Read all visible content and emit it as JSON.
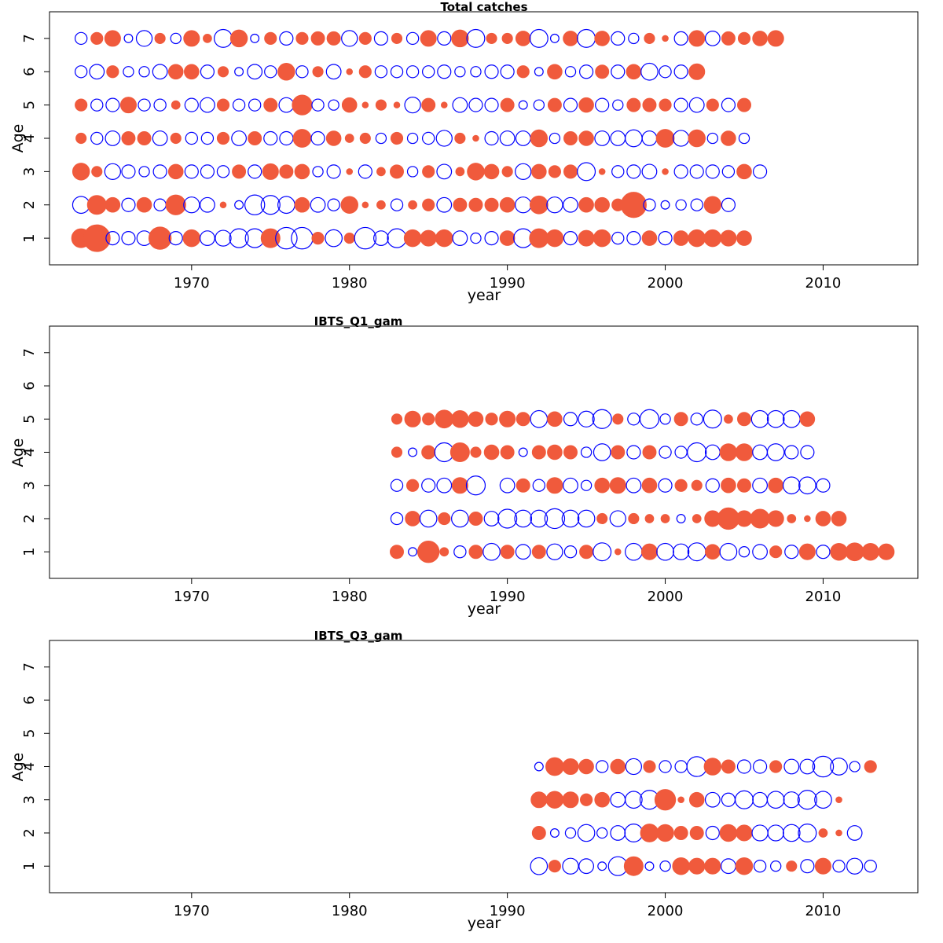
{
  "figure": {
    "colors": {
      "positive": "#f05a3c",
      "negative": "#0000ff",
      "axis": "#000000"
    }
  },
  "chart_data": [
    {
      "type": "scatter",
      "subtype": "bubble",
      "title": "Total catches",
      "xlabel": "year",
      "ylabel": "Age",
      "xlim": [
        1961,
        2016
      ],
      "ylim": [
        0.2,
        7.8
      ],
      "xticks": [
        1970,
        1980,
        1990,
        2000,
        2010
      ],
      "yticks": [
        1,
        2,
        3,
        4,
        5,
        6,
        7
      ],
      "x_start": 1963,
      "ages": [
        1,
        2,
        3,
        4,
        5,
        6,
        7
      ],
      "residuals": {
        "1": [
          1,
          2,
          -0.5,
          -0.5,
          -0.6,
          1.4,
          -0.5,
          0.8,
          -0.6,
          -0.7,
          -1,
          -1,
          1,
          -1.3,
          -1.3,
          0.4,
          -0.8,
          0.3,
          -1.3,
          -0.6,
          -1,
          0.8,
          0.7,
          0.8,
          -0.6,
          -0.3,
          -0.5,
          0.6,
          -1,
          1,
          0.8,
          -0.5,
          0.7,
          0.8,
          -0.4,
          -0.5,
          0.6,
          -0.5,
          0.6,
          0.8,
          0.8,
          0.7,
          0.6
        ],
        "2": [
          -0.8,
          1,
          0.6,
          -0.5,
          0.6,
          -0.4,
          1.1,
          -0.7,
          -0.6,
          0.1,
          -0.2,
          -1.1,
          -1,
          -0.8,
          0.6,
          -0.6,
          -0.4,
          0.8,
          0.1,
          0.2,
          -0.4,
          0.2,
          0.4,
          -0.6,
          0.5,
          0.5,
          0.5,
          0.6,
          -0.7,
          0.9,
          -0.7,
          -0.6,
          0.6,
          0.6,
          0.4,
          1.8,
          -0.4,
          -0.2,
          -0.3,
          -0.4,
          0.8,
          -0.5
        ],
        "3": [
          0.8,
          0.3,
          -0.7,
          -0.5,
          -0.3,
          -0.5,
          0.6,
          -0.5,
          -0.5,
          -0.4,
          0.5,
          -0.5,
          0.7,
          0.5,
          0.6,
          -0.3,
          -0.5,
          0.1,
          -0.5,
          0.2,
          0.5,
          -0.3,
          0.4,
          -0.6,
          0.2,
          0.8,
          0.6,
          0.3,
          -0.7,
          0.6,
          0.4,
          0.5,
          -0.9,
          0.1,
          -0.4,
          -0.5,
          -0.6,
          0.1,
          -0.5,
          -0.5,
          -0.5,
          -0.4,
          0.6,
          -0.5
        ],
        "4": [
          0.3,
          -0.4,
          -0.6,
          0.5,
          0.5,
          -0.6,
          0.3,
          -0.4,
          -0.4,
          0.4,
          -0.6,
          0.5,
          -0.5,
          -0.5,
          0.9,
          -0.5,
          0.6,
          0.2,
          0.3,
          -0.3,
          0.4,
          -0.3,
          -0.4,
          -0.7,
          0.3,
          0.1,
          -0.5,
          -0.6,
          -0.6,
          0.8,
          -0.3,
          0.5,
          0.6,
          -0.6,
          -0.6,
          -0.8,
          -0.6,
          0.9,
          -0.7,
          0.8,
          -0.3,
          0.6,
          -0.3
        ],
        "5": [
          0.4,
          -0.4,
          -0.5,
          0.7,
          -0.4,
          -0.4,
          0.2,
          -0.5,
          -0.6,
          0.4,
          -0.4,
          -0.4,
          0.5,
          -0.6,
          1.1,
          -0.4,
          -0.3,
          0.6,
          0.1,
          0.3,
          0.1,
          -0.7,
          0.5,
          0.1,
          -0.6,
          -0.5,
          -0.5,
          0.5,
          -0.2,
          -0.3,
          0.5,
          -0.5,
          0.6,
          -0.5,
          -0.3,
          0.5,
          0.5,
          0.4,
          -0.5,
          -0.6,
          0.4,
          -0.5,
          0.5
        ],
        "6": [
          -0.4,
          -0.6,
          0.4,
          -0.3,
          -0.3,
          -0.6,
          0.6,
          0.6,
          -0.5,
          0.3,
          -0.2,
          -0.6,
          -0.4,
          0.8,
          -0.4,
          0.3,
          -0.6,
          0.1,
          0.4,
          -0.4,
          -0.4,
          -0.4,
          -0.4,
          -0.5,
          -0.3,
          -0.3,
          -0.5,
          -0.5,
          0.4,
          -0.2,
          0.6,
          -0.3,
          -0.5,
          0.5,
          -0.5,
          0.6,
          -0.8,
          -0.4,
          -0.5,
          0.7
        ],
        "7": [
          -0.4,
          0.4,
          0.7,
          -0.2,
          -0.7,
          0.3,
          -0.3,
          0.7,
          0.2,
          -0.9,
          0.8,
          -0.2,
          0.4,
          -0.5,
          0.4,
          0.5,
          0.5,
          -0.7,
          0.4,
          -0.5,
          0.3,
          -0.4,
          0.7,
          -0.5,
          0.8,
          -0.9,
          0.3,
          0.3,
          0.6,
          -0.9,
          -0.2,
          0.6,
          -0.9,
          0.6,
          -0.5,
          -0.3,
          0.3,
          0.1,
          -0.5,
          0.7,
          -0.6,
          0.5,
          0.4,
          0.6,
          0.7
        ]
      }
    },
    {
      "type": "scatter",
      "subtype": "bubble",
      "title": "IBTS_Q1_gam",
      "xlabel": "year",
      "ylabel": "Age",
      "xlim": [
        1961,
        2016
      ],
      "ylim": [
        0.2,
        7.8
      ],
      "xticks": [
        1970,
        1980,
        1990,
        2000,
        2010
      ],
      "yticks": [
        1,
        2,
        3,
        4,
        5,
        6,
        7
      ],
      "x_start": 1983,
      "ages": [
        1,
        2,
        3,
        4,
        5,
        6,
        7
      ],
      "residuals": {
        "1": [
          0.5,
          -0.2,
          1.3,
          0.2,
          -0.4,
          0.5,
          -0.8,
          0.5,
          -0.6,
          0.5,
          -0.7,
          -0.4,
          0.5,
          -0.9,
          0.1,
          -0.8,
          0.7,
          -0.8,
          -0.7,
          -0.9,
          0.6,
          -0.8,
          -0.3,
          -0.6,
          0.4,
          -0.5,
          0.7,
          -0.5,
          0.8,
          0.9,
          0.8,
          0.7
        ],
        "2": [
          -0.4,
          0.6,
          -0.8,
          0.4,
          -0.8,
          0.5,
          -0.6,
          -1,
          -0.8,
          -0.8,
          -1.1,
          -0.8,
          -0.8,
          0.3,
          -0.7,
          0.3,
          0.2,
          0.2,
          -0.2,
          0.2,
          0.7,
          1.3,
          0.7,
          1,
          0.7,
          0.2,
          0.1,
          0.6,
          0.6
        ],
        "3": [
          -0.4,
          0.4,
          -0.5,
          -0.6,
          0.7,
          -1,
          0,
          -0.6,
          0.5,
          -0.4,
          0.7,
          -0.6,
          -0.3,
          0.6,
          0.7,
          -0.6,
          0.6,
          -0.5,
          0.4,
          0.3,
          -0.5,
          0.6,
          0.5,
          -0.6,
          0.6,
          -0.8,
          -0.8,
          -0.5
        ],
        "4": [
          0.3,
          -0.2,
          0.5,
          -1,
          1,
          0.3,
          0.6,
          0.5,
          -0.2,
          0.5,
          0.6,
          0.5,
          -0.3,
          -0.8,
          0.5,
          -0.5,
          0.5,
          -0.4,
          -0.4,
          -1,
          -0.6,
          0.8,
          0.8,
          -0.6,
          -0.8,
          -0.5,
          -0.5
        ],
        "5": [
          0.3,
          0.7,
          0.4,
          0.9,
          0.8,
          0.6,
          0.4,
          0.7,
          0.5,
          -0.8,
          0.6,
          -0.5,
          -0.7,
          -1,
          0.3,
          -0.4,
          -1,
          -0.3,
          0.5,
          -0.4,
          -0.9,
          0.2,
          0.5,
          -0.8,
          -0.8,
          -0.8,
          0.6
        ]
      }
    },
    {
      "type": "scatter",
      "subtype": "bubble",
      "title": "IBTS_Q3_gam",
      "xlabel": "year",
      "ylabel": "Age",
      "xlim": [
        1961,
        2016
      ],
      "ylim": [
        0.2,
        7.8
      ],
      "xticks": [
        1970,
        1980,
        1990,
        2000,
        2010
      ],
      "yticks": [
        1,
        2,
        3,
        4,
        5,
        6,
        7
      ],
      "x_start": 1992,
      "ages": [
        1,
        2,
        3,
        4,
        5,
        6,
        7
      ],
      "residuals": {
        "1": [
          -0.8,
          0.4,
          -0.7,
          -0.6,
          -0.2,
          -1,
          1,
          -0.2,
          -0.3,
          0.8,
          0.7,
          0.7,
          -0.6,
          0.8,
          -0.4,
          -0.3,
          0.3,
          -0.5,
          0.7,
          -0.4,
          -0.7,
          -0.4
        ],
        "2": [
          0.5,
          -0.2,
          -0.3,
          -0.8,
          -0.3,
          -0.6,
          -0.9,
          0.9,
          0.8,
          0.5,
          0.5,
          -0.5,
          0.8,
          0.7,
          -0.7,
          -0.7,
          -0.8,
          -0.9,
          0.2,
          0.1,
          -0.6
        ],
        "3": [
          0.7,
          0.8,
          0.7,
          0.4,
          0.6,
          -0.6,
          -0.8,
          -1,
          1.2,
          0.1,
          0.6,
          -0.6,
          -0.5,
          -0.9,
          -0.6,
          -0.8,
          -0.7,
          -1,
          -0.8,
          0.1
        ],
        "4": [
          -0.2,
          0.9,
          0.7,
          0.6,
          -0.4,
          0.6,
          -0.7,
          0.4,
          -0.4,
          -0.4,
          -1.1,
          0.8,
          0.5,
          -0.5,
          -0.5,
          0.4,
          -0.6,
          -0.6,
          -1.2,
          -0.8,
          -0.3,
          0.4
        ]
      }
    }
  ]
}
